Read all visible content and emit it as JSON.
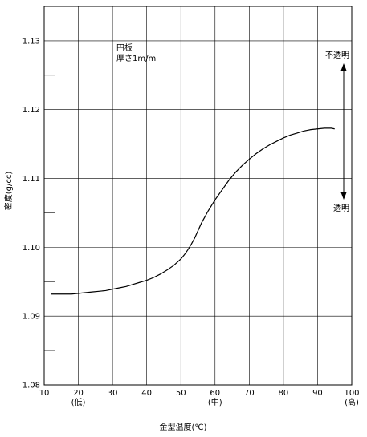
{
  "chart_data": {
    "type": "line",
    "title": "",
    "xlabel": "金型温度(℃)",
    "ylabel": "密度(g/cc)",
    "xlim": [
      10,
      100
    ],
    "ylim": [
      1.08,
      1.135
    ],
    "grid": true,
    "x_ticks": [
      {
        "value": 10,
        "label": "10",
        "sub": ""
      },
      {
        "value": 20,
        "label": "20",
        "sub": "(低)"
      },
      {
        "value": 30,
        "label": "30",
        "sub": ""
      },
      {
        "value": 40,
        "label": "40",
        "sub": ""
      },
      {
        "value": 50,
        "label": "50",
        "sub": ""
      },
      {
        "value": 60,
        "label": "60",
        "sub": "(中)"
      },
      {
        "value": 70,
        "label": "70",
        "sub": ""
      },
      {
        "value": 80,
        "label": "80",
        "sub": ""
      },
      {
        "value": 90,
        "label": "90",
        "sub": ""
      },
      {
        "value": 100,
        "label": "100",
        "sub": "(高)"
      }
    ],
    "y_ticks": [
      {
        "value": 1.08,
        "label": "1.08"
      },
      {
        "value": 1.09,
        "label": "1.09"
      },
      {
        "value": 1.1,
        "label": "1.10"
      },
      {
        "value": 1.11,
        "label": "1.11"
      },
      {
        "value": 1.12,
        "label": "1.12"
      },
      {
        "value": 1.13,
        "label": "1.13"
      }
    ],
    "y_minor_ticks": [
      1.085,
      1.095,
      1.105,
      1.115,
      1.125
    ],
    "annotations": {
      "specimen_line1": "円板",
      "specimen_line2": "厚さ1m/m",
      "opaque": "不透明",
      "transparent": "透明"
    },
    "series": [
      {
        "x": [
          12,
          14,
          16,
          18,
          20,
          22,
          24,
          26,
          28,
          30,
          32,
          34,
          36,
          38,
          40,
          42,
          44,
          46,
          48,
          50,
          51,
          52,
          53,
          54,
          55,
          56,
          58,
          60,
          62,
          64,
          66,
          68,
          70,
          72,
          74,
          76,
          78,
          80,
          82,
          84,
          86,
          88,
          90,
          92,
          94,
          95
        ],
        "y": [
          1.0932,
          1.0932,
          1.0932,
          1.0932,
          1.0933,
          1.0934,
          1.0935,
          1.0936,
          1.0937,
          1.0939,
          1.0941,
          1.0943,
          1.0946,
          1.0949,
          1.0952,
          1.0956,
          1.0961,
          1.0967,
          1.0974,
          1.0983,
          1.0989,
          1.0996,
          1.1004,
          1.1013,
          1.1024,
          1.1035,
          1.1053,
          1.1069,
          1.1083,
          1.1097,
          1.1109,
          1.1119,
          1.1128,
          1.1136,
          1.1143,
          1.1149,
          1.1154,
          1.1159,
          1.1163,
          1.1166,
          1.1169,
          1.1171,
          1.1172,
          1.1173,
          1.1173,
          1.1172
        ]
      }
    ],
    "colors": {
      "line": "#000000",
      "grid": "#000000",
      "background": "#ffffff"
    }
  }
}
